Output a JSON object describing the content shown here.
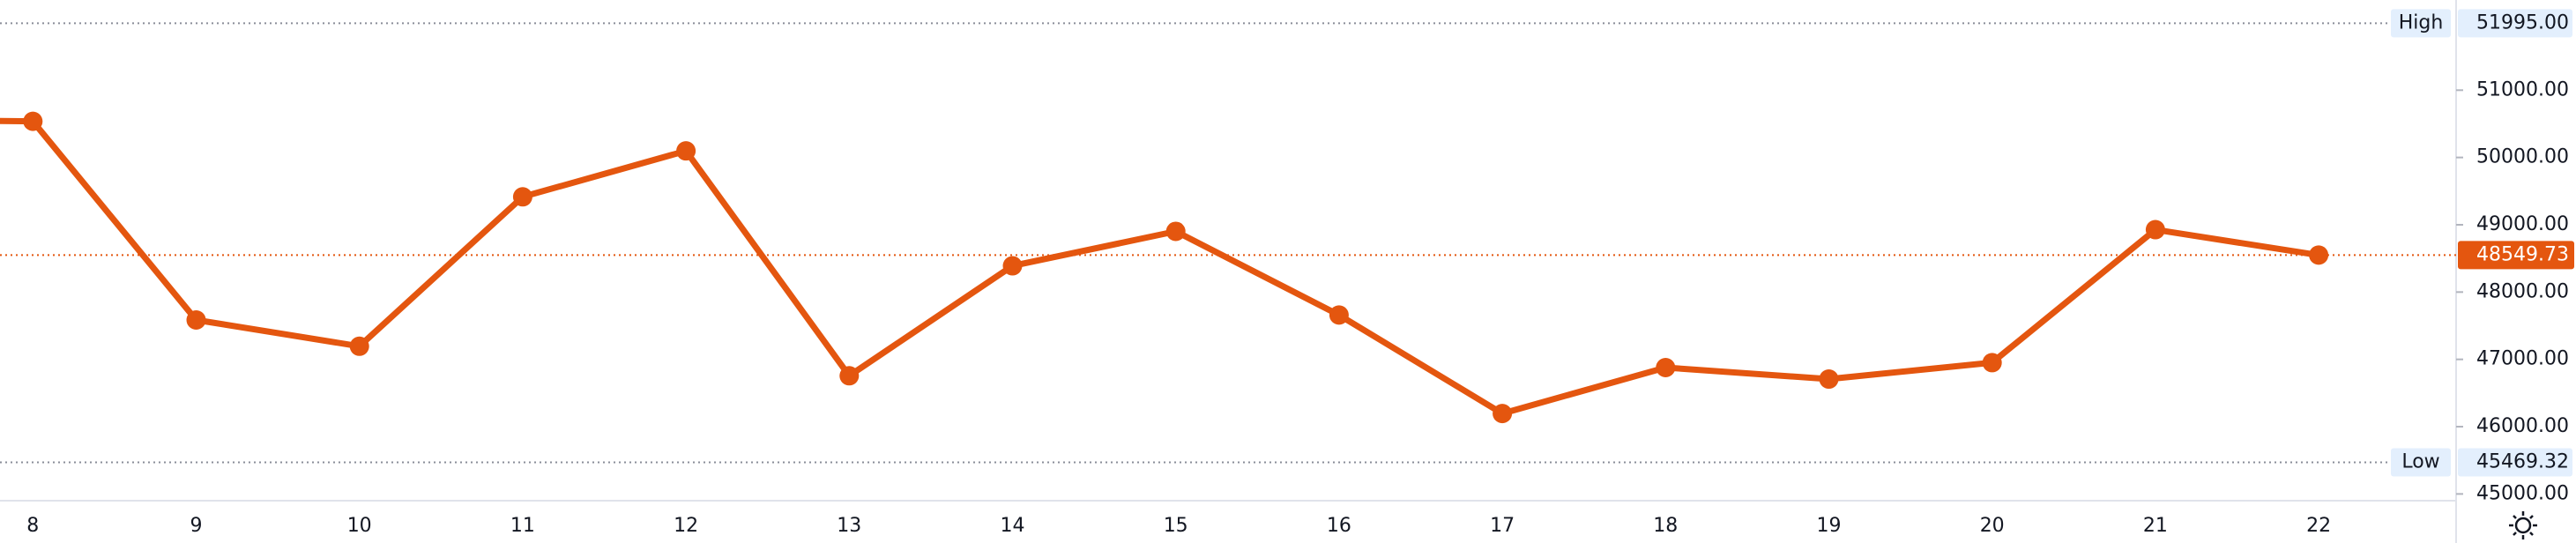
{
  "chart_data": {
    "type": "line",
    "categories": [
      null,
      "8",
      "9",
      "10",
      "11",
      "12",
      "13",
      "14",
      "15",
      "16",
      "17",
      "18",
      "19",
      "20",
      "21",
      "22"
    ],
    "values": [
      50560,
      50537,
      47585,
      47195,
      49415,
      50098,
      46756,
      48390,
      48902,
      47659,
      46195,
      46878,
      46707,
      46951,
      48927,
      48549.73
    ],
    "color": "#e4560f",
    "ylim": [
      44900,
      52340
    ],
    "yticks": [
      {
        "value": 45000,
        "label": "45000.00"
      },
      {
        "value": 46000,
        "label": "46000.00"
      },
      {
        "value": 47000,
        "label": "47000.00"
      },
      {
        "value": 48000,
        "label": "48000.00"
      },
      {
        "value": 49000,
        "label": "49000.00"
      },
      {
        "value": 50000,
        "label": "50000.00"
      },
      {
        "value": 51000,
        "label": "51000.00"
      }
    ],
    "high": {
      "name": "High",
      "value": 51995,
      "label": "51995.00"
    },
    "low": {
      "name": "Low",
      "value": 45469.32,
      "label": "45469.32"
    },
    "price_line": {
      "value": 48549.73,
      "label": "48549.73"
    }
  }
}
